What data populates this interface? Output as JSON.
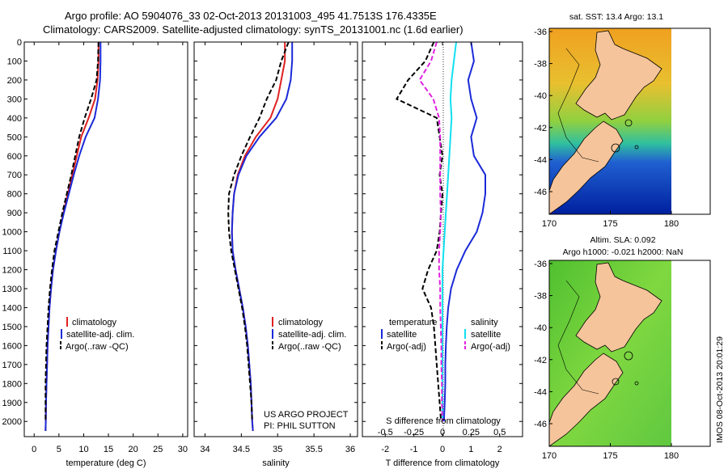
{
  "header": {
    "line1": "Argo profile: AO 5904076_33 02-Oct-2013 20131003_495 41.7513S 176.4335E",
    "line2": "Climatology: CARS2009. Satellite-adjusted climatology: synTS_20131001.nc (1.6d earlier)"
  },
  "colors": {
    "climatology": "#e02020",
    "satellite": "#1a2ad8",
    "argo": "#000000",
    "cyan": "#10e0f0",
    "magenta": "#e020e0",
    "land": "#f5c49a"
  },
  "chart_data": [
    {
      "type": "line",
      "id": "temperature",
      "xlabel": "temperature (deg C)",
      "ylabel": "",
      "xlim": [
        -2,
        31
      ],
      "ylim": [
        2080,
        0
      ],
      "xticks": [
        0,
        5,
        10,
        15,
        20,
        25,
        30
      ],
      "yticks": [
        0,
        100,
        200,
        300,
        400,
        500,
        600,
        700,
        800,
        900,
        1000,
        1100,
        1200,
        1300,
        1400,
        1500,
        1600,
        1700,
        1800,
        1900,
        2000
      ],
      "legend": [
        "climatology",
        "satellite-adj. clim.",
        "Argo(..raw -QC)"
      ],
      "series": [
        {
          "name": "climatology",
          "style": "solid",
          "color": "#e02020",
          "x": [
            13.0,
            13.0,
            12.8,
            12.3,
            11.0,
            9.5,
            8.6,
            7.7,
            6.8,
            5.9,
            5.1,
            4.4,
            3.8,
            3.4,
            3.1,
            2.9,
            2.7,
            2.6,
            2.5,
            2.4,
            2.35,
            2.3
          ],
          "y": [
            0,
            100,
            200,
            300,
            400,
            500,
            600,
            700,
            800,
            900,
            1000,
            1100,
            1200,
            1300,
            1400,
            1500,
            1600,
            1700,
            1800,
            1900,
            2000,
            2050
          ]
        },
        {
          "name": "satellite-adj. clim.",
          "style": "solid",
          "color": "#1a2ad8",
          "x": [
            13.4,
            13.4,
            13.3,
            12.9,
            12.2,
            10.4,
            9.1,
            8.0,
            7.0,
            6.0,
            5.1,
            4.4,
            3.8,
            3.4,
            3.1,
            2.9,
            2.7,
            2.6,
            2.5,
            2.4,
            2.35,
            2.3
          ],
          "y": [
            0,
            100,
            200,
            300,
            400,
            500,
            600,
            700,
            800,
            900,
            1000,
            1100,
            1200,
            1300,
            1400,
            1500,
            1600,
            1700,
            1800,
            1900,
            2000,
            2050
          ]
        },
        {
          "name": "Argo(..raw -QC)",
          "style": "dashed",
          "color": "#000000",
          "x": [
            13.0,
            12.9,
            12.6,
            11.5,
            10.2,
            9.1,
            8.3,
            7.5,
            6.6,
            5.7,
            4.9,
            4.1,
            3.6,
            3.2,
            2.9,
            2.7,
            2.5,
            2.4,
            2.3,
            2.3,
            2.3
          ],
          "y": [
            0,
            100,
            200,
            300,
            400,
            500,
            600,
            700,
            800,
            900,
            1000,
            1100,
            1200,
            1300,
            1400,
            1500,
            1600,
            1700,
            1800,
            1900,
            2000
          ]
        }
      ]
    },
    {
      "type": "line",
      "id": "salinity",
      "xlabel": "salinity",
      "xlim": [
        33.85,
        36.1
      ],
      "ylim": [
        2080,
        0
      ],
      "xticks": [
        34,
        34.5,
        35,
        35.5,
        36
      ],
      "legend": [
        "climatology",
        "satellite-adj. clim.",
        "Argo(..raw -QC)"
      ],
      "series": [
        {
          "name": "climatology",
          "style": "solid",
          "color": "#e02020",
          "x": [
            35.1,
            35.1,
            35.05,
            35.0,
            34.9,
            34.7,
            34.55,
            34.45,
            34.4,
            34.38,
            34.37,
            34.38,
            34.42,
            34.47,
            34.52,
            34.56,
            34.59,
            34.61,
            34.63,
            34.64,
            34.65,
            34.66
          ],
          "y": [
            0,
            100,
            200,
            300,
            400,
            500,
            600,
            700,
            800,
            900,
            1000,
            1100,
            1200,
            1300,
            1400,
            1500,
            1600,
            1700,
            1800,
            1900,
            2000,
            2050
          ]
        },
        {
          "name": "satellite-adj. clim.",
          "style": "solid",
          "color": "#1a2ad8",
          "x": [
            35.2,
            35.2,
            35.18,
            35.12,
            34.98,
            34.75,
            34.57,
            34.46,
            34.4,
            34.38,
            34.37,
            34.38,
            34.42,
            34.47,
            34.52,
            34.56,
            34.59,
            34.61,
            34.63,
            34.64,
            34.65,
            34.66
          ],
          "y": [
            0,
            100,
            200,
            300,
            400,
            500,
            600,
            700,
            800,
            900,
            1000,
            1100,
            1200,
            1300,
            1400,
            1500,
            1600,
            1700,
            1800,
            1900,
            2000,
            2050
          ]
        },
        {
          "name": "Argo(..raw -QC)",
          "style": "dashed",
          "color": "#000000",
          "x": [
            35.15,
            35.05,
            34.98,
            34.85,
            34.75,
            34.62,
            34.5,
            34.4,
            34.33,
            34.32,
            34.33,
            34.36,
            34.41,
            34.46,
            34.51,
            34.55,
            34.58,
            34.6,
            34.62,
            34.64,
            34.65
          ],
          "y": [
            0,
            100,
            200,
            300,
            400,
            500,
            600,
            700,
            800,
            900,
            1000,
            1100,
            1200,
            1300,
            1400,
            1500,
            1600,
            1700,
            1800,
            1900,
            2000
          ]
        }
      ],
      "annotations": [
        "US ARGO PROJECT",
        "PI: PHIL SUTTON"
      ]
    },
    {
      "type": "line",
      "id": "difference",
      "xlabel": "T difference from climatology",
      "xlabel_top": "S difference from climatology",
      "xlim": [
        -2.8,
        2.8
      ],
      "ylim": [
        2080,
        0
      ],
      "xticks": [
        -2,
        -1,
        0,
        1,
        2
      ],
      "s_ticks": [
        -0.5,
        -0.25,
        0,
        0.25,
        0.5
      ],
      "legend_title_t": "temperature",
      "legend_title_s": "salinity",
      "legend": [
        "satellite",
        "Argo(-adj)",
        "satellite",
        "Argo(-adj)"
      ],
      "series": [
        {
          "name": "T satellite",
          "style": "solid",
          "color": "#1a2ad8",
          "x": [
            1.0,
            1.1,
            0.9,
            1.0,
            1.2,
            1.0,
            1.1,
            1.5,
            1.5,
            1.4,
            1.2,
            0.8,
            0.5,
            0.3,
            0.2,
            0.15,
            0.12,
            0.1,
            0.1,
            0.08,
            0.05
          ],
          "y": [
            0,
            100,
            200,
            300,
            400,
            500,
            600,
            700,
            800,
            900,
            1000,
            1100,
            1200,
            1300,
            1400,
            1500,
            1600,
            1700,
            1800,
            1900,
            2000
          ]
        },
        {
          "name": "T Argo(-adj)",
          "style": "dashed",
          "color": "#000000",
          "x": [
            -0.3,
            -0.6,
            -1.2,
            -1.6,
            -0.2,
            -0.1,
            0.0,
            -0.1,
            0.0,
            -0.05,
            -0.1,
            -0.2,
            -0.5,
            -0.7,
            -0.4,
            -0.3,
            -0.25,
            -0.2,
            -0.15,
            -0.1,
            -0.05
          ],
          "y": [
            0,
            100,
            200,
            300,
            400,
            500,
            600,
            700,
            800,
            900,
            1000,
            1100,
            1200,
            1300,
            1400,
            1500,
            1600,
            1700,
            1800,
            1900,
            2000
          ]
        },
        {
          "name": "S satellite",
          "style": "solid",
          "color": "#10e0f0",
          "x": [
            0.12,
            0.1,
            0.08,
            0.07,
            0.08,
            0.07,
            0.06,
            0.05,
            0.04,
            0.03,
            0.02,
            0.01,
            0.0,
            0.0,
            0.0,
            0.0,
            0.0,
            0.0,
            0.0,
            0.0,
            0.0
          ],
          "y": [
            0,
            100,
            200,
            300,
            400,
            500,
            600,
            700,
            800,
            900,
            1000,
            1100,
            1200,
            1300,
            1400,
            1500,
            1600,
            1700,
            1800,
            1900,
            2000
          ]
        },
        {
          "name": "S Argo(-adj)",
          "style": "dashed",
          "color": "#e020e0",
          "x": [
            -0.05,
            -0.1,
            -0.2,
            -0.08,
            -0.03,
            -0.02,
            -0.02,
            -0.02,
            -0.02,
            -0.015,
            -0.02,
            -0.03,
            -0.03,
            -0.02,
            -0.02,
            -0.015,
            -0.01,
            -0.01,
            -0.005,
            -0.005,
            0.0
          ],
          "y": [
            0,
            100,
            200,
            300,
            400,
            500,
            600,
            700,
            800,
            900,
            1000,
            1100,
            1200,
            1300,
            1400,
            1500,
            1600,
            1700,
            1800,
            1900,
            2000
          ]
        }
      ]
    },
    {
      "type": "heatmap",
      "id": "sst-map",
      "title": "sat. SST: 13.4 Argo: 13.1",
      "xticks": [
        170,
        175,
        180
      ],
      "yticks": [
        -36,
        -38,
        -40,
        -42,
        -44,
        -46
      ]
    },
    {
      "type": "heatmap",
      "id": "sla-map",
      "title1": "Altim. SLA: 0.092",
      "title2": "Argo h1000: -0.021 h2000: NaN",
      "xticks": [
        170,
        175,
        180
      ],
      "yticks": [
        -36,
        -38,
        -40,
        -42,
        -44,
        -46
      ]
    }
  ],
  "side_label": "IMOS 08-Oct-2013 20:01:29"
}
